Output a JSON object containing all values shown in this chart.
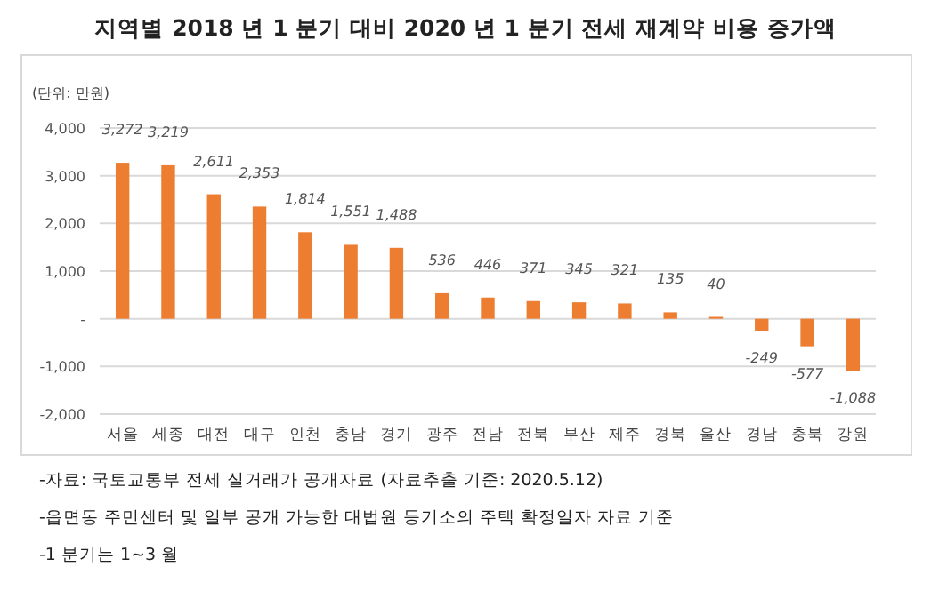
{
  "chart_data": {
    "type": "bar",
    "title": "지역별 2018 년 1 분기 대비 2020 년 1 분기 전세 재계약 비용 증가액",
    "ylabel": "(단위: 만원)",
    "categories": [
      "서울",
      "세종",
      "대전",
      "대구",
      "인천",
      "충남",
      "경기",
      "광주",
      "전남",
      "전북",
      "부산",
      "제주",
      "경북",
      "울산",
      "경남",
      "충북",
      "강원"
    ],
    "values": [
      3272,
      3219,
      2611,
      2353,
      1814,
      1551,
      1488,
      536,
      446,
      371,
      345,
      321,
      135,
      40,
      -249,
      -577,
      -1088
    ],
    "color": "#ed7d31",
    "ylim": [
      -2000,
      4000
    ],
    "yticks": [
      {
        "value": 4000,
        "label": "4,000"
      },
      {
        "value": 3000,
        "label": "3,000"
      },
      {
        "value": 2000,
        "label": "2,000"
      },
      {
        "value": 1000,
        "label": "1,000"
      },
      {
        "value": 0,
        "label": "-"
      },
      {
        "value": -1000,
        "label": "-1,000"
      },
      {
        "value": -2000,
        "label": "-2,000"
      }
    ],
    "grid": "y",
    "value_labels": [
      "3,272",
      "3,219",
      "2,611",
      "2,353",
      "1,814",
      "1,551",
      "1,488",
      "536",
      "446",
      "371",
      "345",
      "321",
      "135",
      "40",
      "-249",
      "-577",
      "-1,088"
    ],
    "annotations": [
      "-자료: 국토교통부 전세 실거래가 공개자료 (자료추출 기준: 2020.5.12)",
      "-읍면동 주민센터 및 일부 공개 가능한 대법원 등기소의 주택 확정일자 자료 기준",
      "-1 분기는 1~3 월"
    ]
  }
}
